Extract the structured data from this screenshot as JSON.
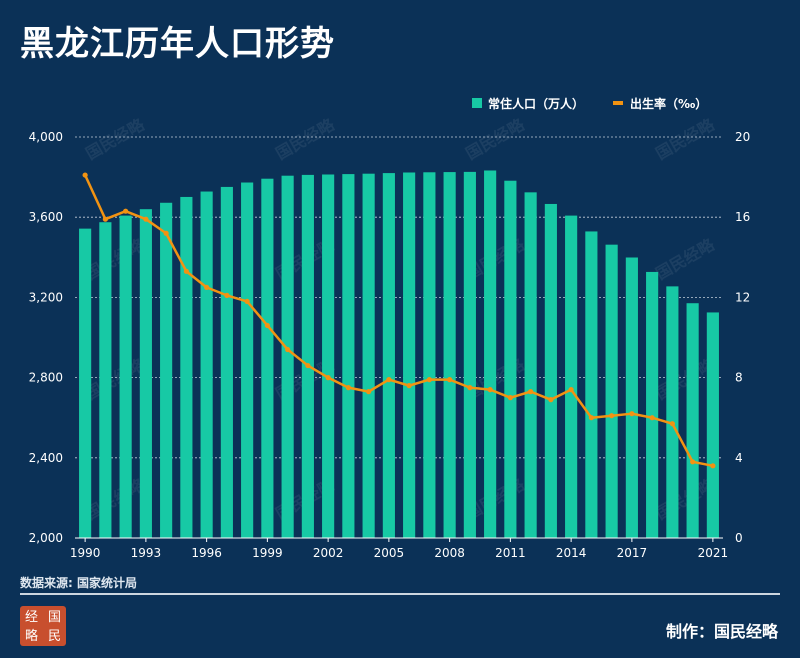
{
  "title": "黑龙江历年人口形势",
  "source": "数据来源: 国家统计局",
  "credit": "制作：国民经略",
  "logo_text": [
    "经",
    "国",
    "略",
    "民"
  ],
  "watermark": "国民经略",
  "colors": {
    "background": "#0b3157",
    "bar": "#17c9a5",
    "line": "#f29312",
    "text": "#ffffff"
  },
  "chart_data": {
    "type": "bar",
    "categories": [
      "1990",
      "1991",
      "1992",
      "1993",
      "1994",
      "1995",
      "1996",
      "1997",
      "1998",
      "1999",
      "2000",
      "2001",
      "2002",
      "2003",
      "2004",
      "2005",
      "2006",
      "2007",
      "2008",
      "2009",
      "2010",
      "2011",
      "2012",
      "2013",
      "2014",
      "2015",
      "2016",
      "2017",
      "2018",
      "2019",
      "2020",
      "2021"
    ],
    "x_tick_labels": [
      "1990",
      "1993",
      "1996",
      "1999",
      "2002",
      "2005",
      "2008",
      "2011",
      "2014",
      "2017",
      "2021"
    ],
    "y_left": {
      "min": 2000,
      "max": 4000,
      "ticks": [
        "2,000",
        "2,400",
        "2,800",
        "3,200",
        "3,600",
        "4,000"
      ]
    },
    "y_right": {
      "min": 0,
      "max": 20,
      "ticks": [
        "0",
        "4",
        "8",
        "12",
        "16",
        "20"
      ]
    },
    "series": [
      {
        "name": "常住人口（万人）",
        "type": "bar",
        "axis": "left",
        "values": [
          3543,
          3575,
          3608,
          3640,
          3672,
          3701,
          3728,
          3751,
          3773,
          3792,
          3807,
          3811,
          3813,
          3815,
          3817,
          3820,
          3823,
          3824,
          3825,
          3826,
          3833,
          3782,
          3724,
          3666,
          3608,
          3529,
          3463,
          3399,
          3327,
          3255,
          3171,
          3125
        ]
      },
      {
        "name": "出生率（‰）",
        "type": "line",
        "axis": "right",
        "values": [
          18.1,
          15.9,
          16.3,
          15.9,
          15.2,
          13.3,
          12.5,
          12.1,
          11.8,
          10.6,
          9.4,
          8.6,
          8.0,
          7.5,
          7.3,
          7.9,
          7.6,
          7.9,
          7.9,
          7.5,
          7.4,
          7.0,
          7.3,
          6.9,
          7.4,
          6.0,
          6.1,
          6.2,
          6.0,
          5.7,
          3.8,
          3.6
        ]
      }
    ],
    "grid": true,
    "legend": "top-right"
  }
}
